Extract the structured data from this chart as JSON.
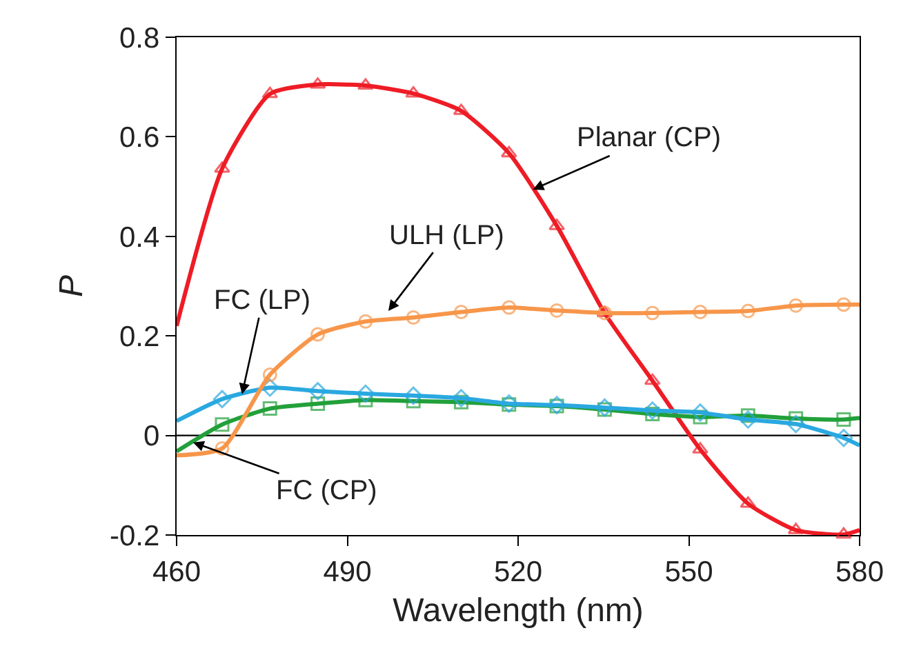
{
  "chart_data": {
    "type": "line",
    "xlabel": "Wavelength (nm)",
    "ylabel": "P",
    "x": [
      460,
      468,
      476.4,
      484.8,
      493.2,
      501.6,
      510,
      518.4,
      526.8,
      535.2,
      543.6,
      552,
      560.4,
      568.8,
      577.2,
      580
    ],
    "series": [
      {
        "color": "#ee1c25",
        "marker": "triangle",
        "values": [
          0.22,
          0.536,
          0.686,
          0.705,
          0.703,
          0.687,
          0.652,
          0.567,
          0.421,
          0.246,
          0.11,
          -0.028,
          -0.137,
          -0.19,
          -0.199,
          -0.19
        ]
      },
      {
        "color": "#22a03a",
        "marker": "square",
        "values": [
          -0.032,
          0.022,
          0.054,
          0.064,
          0.071,
          0.069,
          0.067,
          0.062,
          0.059,
          0.052,
          0.043,
          0.037,
          0.04,
          0.034,
          0.032,
          0.035
        ]
      },
      {
        "color": "#2aa8e0",
        "marker": "diamond",
        "values": [
          0.029,
          0.073,
          0.096,
          0.089,
          0.084,
          0.08,
          0.075,
          0.064,
          0.061,
          0.056,
          0.05,
          0.046,
          0.032,
          0.023,
          -0.005,
          -0.02
        ]
      },
      {
        "color": "#f7964a",
        "marker": "circle",
        "values": [
          -0.04,
          -0.026,
          0.122,
          0.203,
          0.229,
          0.237,
          0.248,
          0.257,
          0.251,
          0.246,
          0.246,
          0.248,
          0.25,
          0.261,
          0.263,
          0.263
        ]
      }
    ],
    "xlim": [
      460,
      580
    ],
    "xticks": [
      460,
      490,
      520,
      550,
      580
    ],
    "ylim": [
      -0.2,
      0.8
    ],
    "yticks": [
      -0.2,
      0,
      0.2,
      0.4,
      0.6,
      0.8
    ],
    "ref_lines": [
      {
        "axis": "y",
        "value": 0,
        "color": "#000000"
      }
    ],
    "annotations": [
      {
        "text": "Planar (CP)",
        "x": 522.6,
        "y": 0.494
      },
      {
        "text": "ULH (LP)",
        "x": 497.2,
        "y": 0.25
      },
      {
        "text": "FC (LP)",
        "x": 471.5,
        "y": 0.083
      },
      {
        "text": "FC (CP)",
        "x": 462.9,
        "y": -0.014
      }
    ]
  }
}
